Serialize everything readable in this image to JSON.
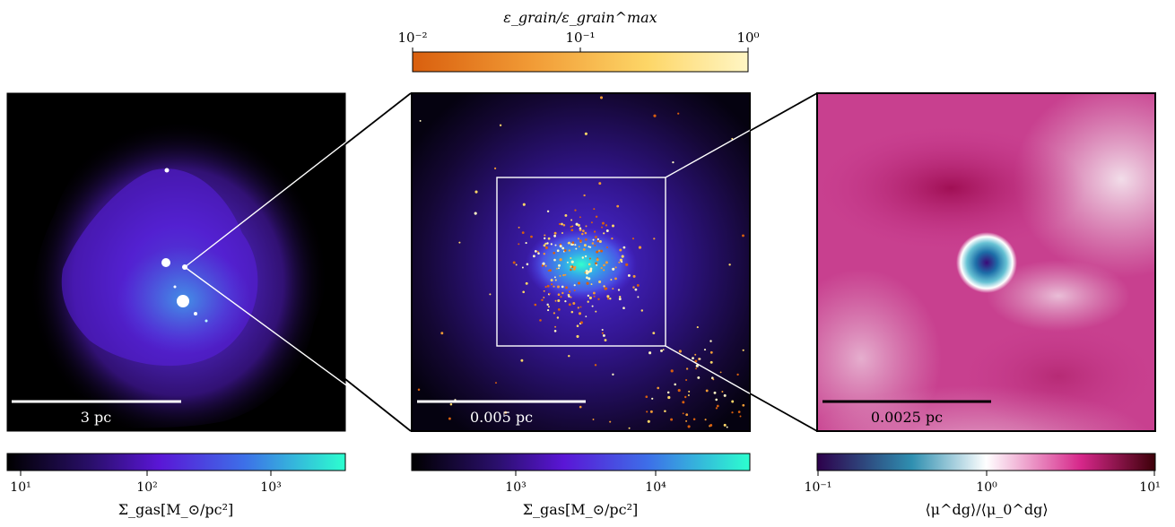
{
  "top_colorbar": {
    "label": "ε_grain/ε_grain^max",
    "tick_labels": [
      "10⁻²",
      "10⁻¹",
      "10⁰"
    ],
    "colors": [
      "#d95f0e",
      "#f19a35",
      "#fdd667",
      "#fff6c4"
    ]
  },
  "panels": {
    "left": {
      "scalebar_label": "3 pc",
      "colorbar_label": "Σ_gas[M_⊙/pc²]",
      "colorbar_ticks": [
        "10¹",
        "10²",
        "10³"
      ],
      "colorbar_colors": [
        "#000000",
        "#2a0f6b",
        "#5a16d6",
        "#3d6fe8",
        "#2cffcf"
      ]
    },
    "middle": {
      "scalebar_label": "0.005 pc",
      "colorbar_label": "Σ_gas[M_⊙/pc²]",
      "colorbar_ticks": [
        "10³",
        "10⁴"
      ],
      "colorbar_colors": [
        "#000000",
        "#2a0f6b",
        "#5a16d6",
        "#3d6fe8",
        "#2cffcf"
      ]
    },
    "right": {
      "scalebar_label": "0.0025 pc",
      "colorbar_label": "⟨μ^dg⟩/⟨μ_0^dg⟩",
      "colorbar_ticks": [
        "10⁻¹",
        "10⁰",
        "10¹"
      ],
      "colorbar_colors": [
        "#2d004b",
        "#2f8fb0",
        "#ffffff",
        "#d6278a",
        "#3c0008"
      ]
    }
  }
}
